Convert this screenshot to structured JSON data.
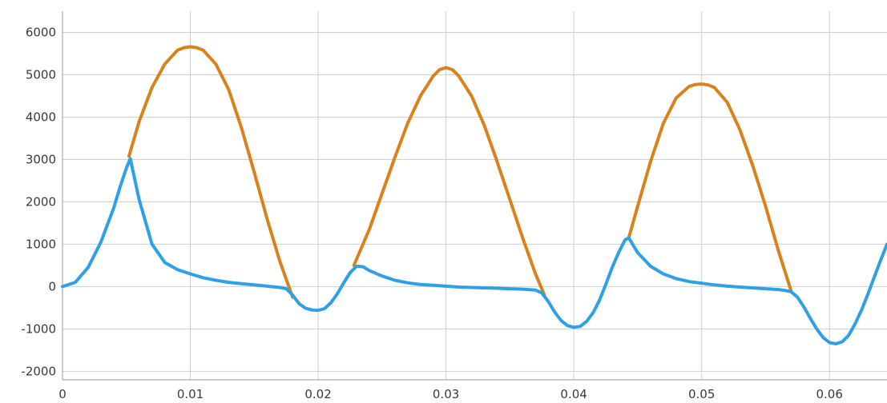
{
  "chart_data": {
    "type": "line",
    "title": "",
    "xlabel": "",
    "ylabel": "",
    "xlim": [
      0,
      0.0645
    ],
    "ylim": [
      -2200,
      6500
    ],
    "grid": true,
    "legend": "none",
    "x_ticks": [
      0,
      0.01,
      0.02,
      0.03,
      0.04,
      0.05,
      0.06
    ],
    "x_tick_labels": [
      "0",
      "0.01",
      "0.02",
      "0.03",
      "0.04",
      "0.05",
      "0.06"
    ],
    "y_ticks": [
      -2000,
      -1000,
      0,
      1000,
      2000,
      3000,
      4000,
      5000,
      6000
    ],
    "y_tick_labels": [
      "-2000",
      "-1000",
      "0",
      "1000",
      "2000",
      "3000",
      "4000",
      "5000",
      "6000"
    ],
    "series": [
      {
        "color": "#d9821c",
        "x": [
          0.0052,
          0.006,
          0.007,
          0.008,
          0.009,
          0.0095,
          0.01,
          0.0105,
          0.011,
          0.012,
          0.013,
          0.014,
          0.015,
          0.016,
          0.017,
          0.018
        ],
        "y": [
          3080,
          3900,
          4700,
          5250,
          5580,
          5640,
          5660,
          5640,
          5580,
          5250,
          4650,
          3750,
          2700,
          1600,
          600,
          -250
        ]
      },
      {
        "color": "#d9821c",
        "x": [
          0.0228,
          0.024,
          0.025,
          0.026,
          0.027,
          0.028,
          0.029,
          0.0295,
          0.03,
          0.0305,
          0.031,
          0.032,
          0.033,
          0.034,
          0.035,
          0.036,
          0.037,
          0.0377
        ],
        "y": [
          500,
          1350,
          2200,
          3050,
          3850,
          4500,
          4970,
          5120,
          5170,
          5120,
          4970,
          4500,
          3800,
          2950,
          2050,
          1150,
          300,
          -200
        ]
      },
      {
        "color": "#d9821c",
        "x": [
          0.0443,
          0.045,
          0.046,
          0.047,
          0.048,
          0.049,
          0.0495,
          0.05,
          0.0505,
          0.051,
          0.052,
          0.053,
          0.054,
          0.055,
          0.056,
          0.057
        ],
        "y": [
          1150,
          1900,
          2950,
          3850,
          4450,
          4720,
          4770,
          4780,
          4760,
          4700,
          4350,
          3700,
          2850,
          1900,
          850,
          -100
        ]
      },
      {
        "color": "#2ea0e6",
        "x": [
          0,
          0.001,
          0.002,
          0.003,
          0.004,
          0.0045,
          0.005,
          0.0053,
          0.006,
          0.007,
          0.008,
          0.009,
          0.01,
          0.011,
          0.012,
          0.013,
          0.014,
          0.015,
          0.016,
          0.017,
          0.0175,
          0.018,
          0.0185,
          0.019,
          0.0195,
          0.02,
          0.0205,
          0.021,
          0.0215,
          0.022,
          0.0225,
          0.023,
          0.0235,
          0.024,
          0.025,
          0.026,
          0.027,
          0.028,
          0.029,
          0.03,
          0.031,
          0.032,
          0.033,
          0.034,
          0.035,
          0.036,
          0.037,
          0.0375,
          0.038,
          0.0385,
          0.039,
          0.0395,
          0.04,
          0.0405,
          0.041,
          0.0415,
          0.042,
          0.0425,
          0.043,
          0.0435,
          0.044,
          0.0443,
          0.045,
          0.046,
          0.047,
          0.048,
          0.049,
          0.05,
          0.051,
          0.052,
          0.053,
          0.054,
          0.055,
          0.056,
          0.0565,
          0.057,
          0.0575,
          0.058,
          0.0585,
          0.059,
          0.0595,
          0.06,
          0.0605,
          0.061,
          0.0615,
          0.062,
          0.0625,
          0.063,
          0.0635,
          0.064,
          0.0645
        ],
        "y": [
          0,
          100,
          450,
          1050,
          1850,
          2350,
          2800,
          3020,
          2050,
          1000,
          570,
          400,
          300,
          210,
          150,
          100,
          70,
          40,
          10,
          -20,
          -50,
          -200,
          -400,
          -510,
          -550,
          -560,
          -520,
          -380,
          -170,
          90,
          330,
          480,
          470,
          380,
          250,
          150,
          90,
          50,
          30,
          10,
          -10,
          -20,
          -30,
          -40,
          -50,
          -60,
          -80,
          -150,
          -350,
          -600,
          -800,
          -920,
          -960,
          -940,
          -820,
          -620,
          -330,
          50,
          450,
          800,
          1100,
          1150,
          800,
          480,
          300,
          190,
          120,
          80,
          40,
          10,
          -10,
          -30,
          -50,
          -70,
          -90,
          -120,
          -250,
          -480,
          -750,
          -1000,
          -1200,
          -1320,
          -1350,
          -1300,
          -1150,
          -880,
          -560,
          -180,
          220,
          620,
          1000
        ]
      }
    ]
  }
}
